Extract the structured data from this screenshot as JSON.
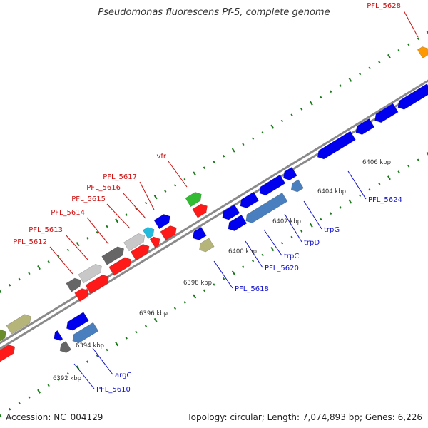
{
  "title": "Pseudomonas fluorescens Pf-5, complete genome",
  "footer": {
    "accession": "Accession: NC_004129",
    "summary": "Topology: circular; Length: 7,074,893 bp; Genes: 6,226"
  },
  "colors": {
    "strand_line": "#8a8a8a",
    "tick": "#1a7a1a",
    "forward_label": "#cc1111",
    "reverse_label": "#1111cc",
    "kbp_label": "#333333"
  },
  "kbp_ticks": [
    "6392 kbp",
    "6394 kbp",
    "6396 kbp",
    "6398 kbp",
    "6400 kbp",
    "6402 kbp",
    "6404 kbp",
    "6406 kbp"
  ],
  "forward_genes": [
    {
      "name": "PFL_5612",
      "color": "#cc1111"
    },
    {
      "name": "PFL_5613",
      "color": "#cc1111"
    },
    {
      "name": "PFL_5614",
      "color": "#cc1111"
    },
    {
      "name": "PFL_5615",
      "color": "#cc1111"
    },
    {
      "name": "PFL_5616",
      "color": "#cc1111"
    },
    {
      "name": "PFL_5617",
      "color": "#cc1111"
    },
    {
      "name": "vfr",
      "color": "#cc1111"
    },
    {
      "name": "PFL_5628",
      "color": "#cc1111"
    }
  ],
  "reverse_genes": [
    {
      "name": "PFL_5610",
      "color": "#1111cc"
    },
    {
      "name": "argC",
      "color": "#1111cc"
    },
    {
      "name": "PFL_5618",
      "color": "#1111cc"
    },
    {
      "name": "PFL_5620",
      "color": "#1111cc"
    },
    {
      "name": "trpC",
      "color": "#1111cc"
    },
    {
      "name": "trpD",
      "color": "#1111cc"
    },
    {
      "name": "trpG",
      "color": "#1111cc"
    },
    {
      "name": "PFL_5624",
      "color": "#1111cc"
    }
  ]
}
